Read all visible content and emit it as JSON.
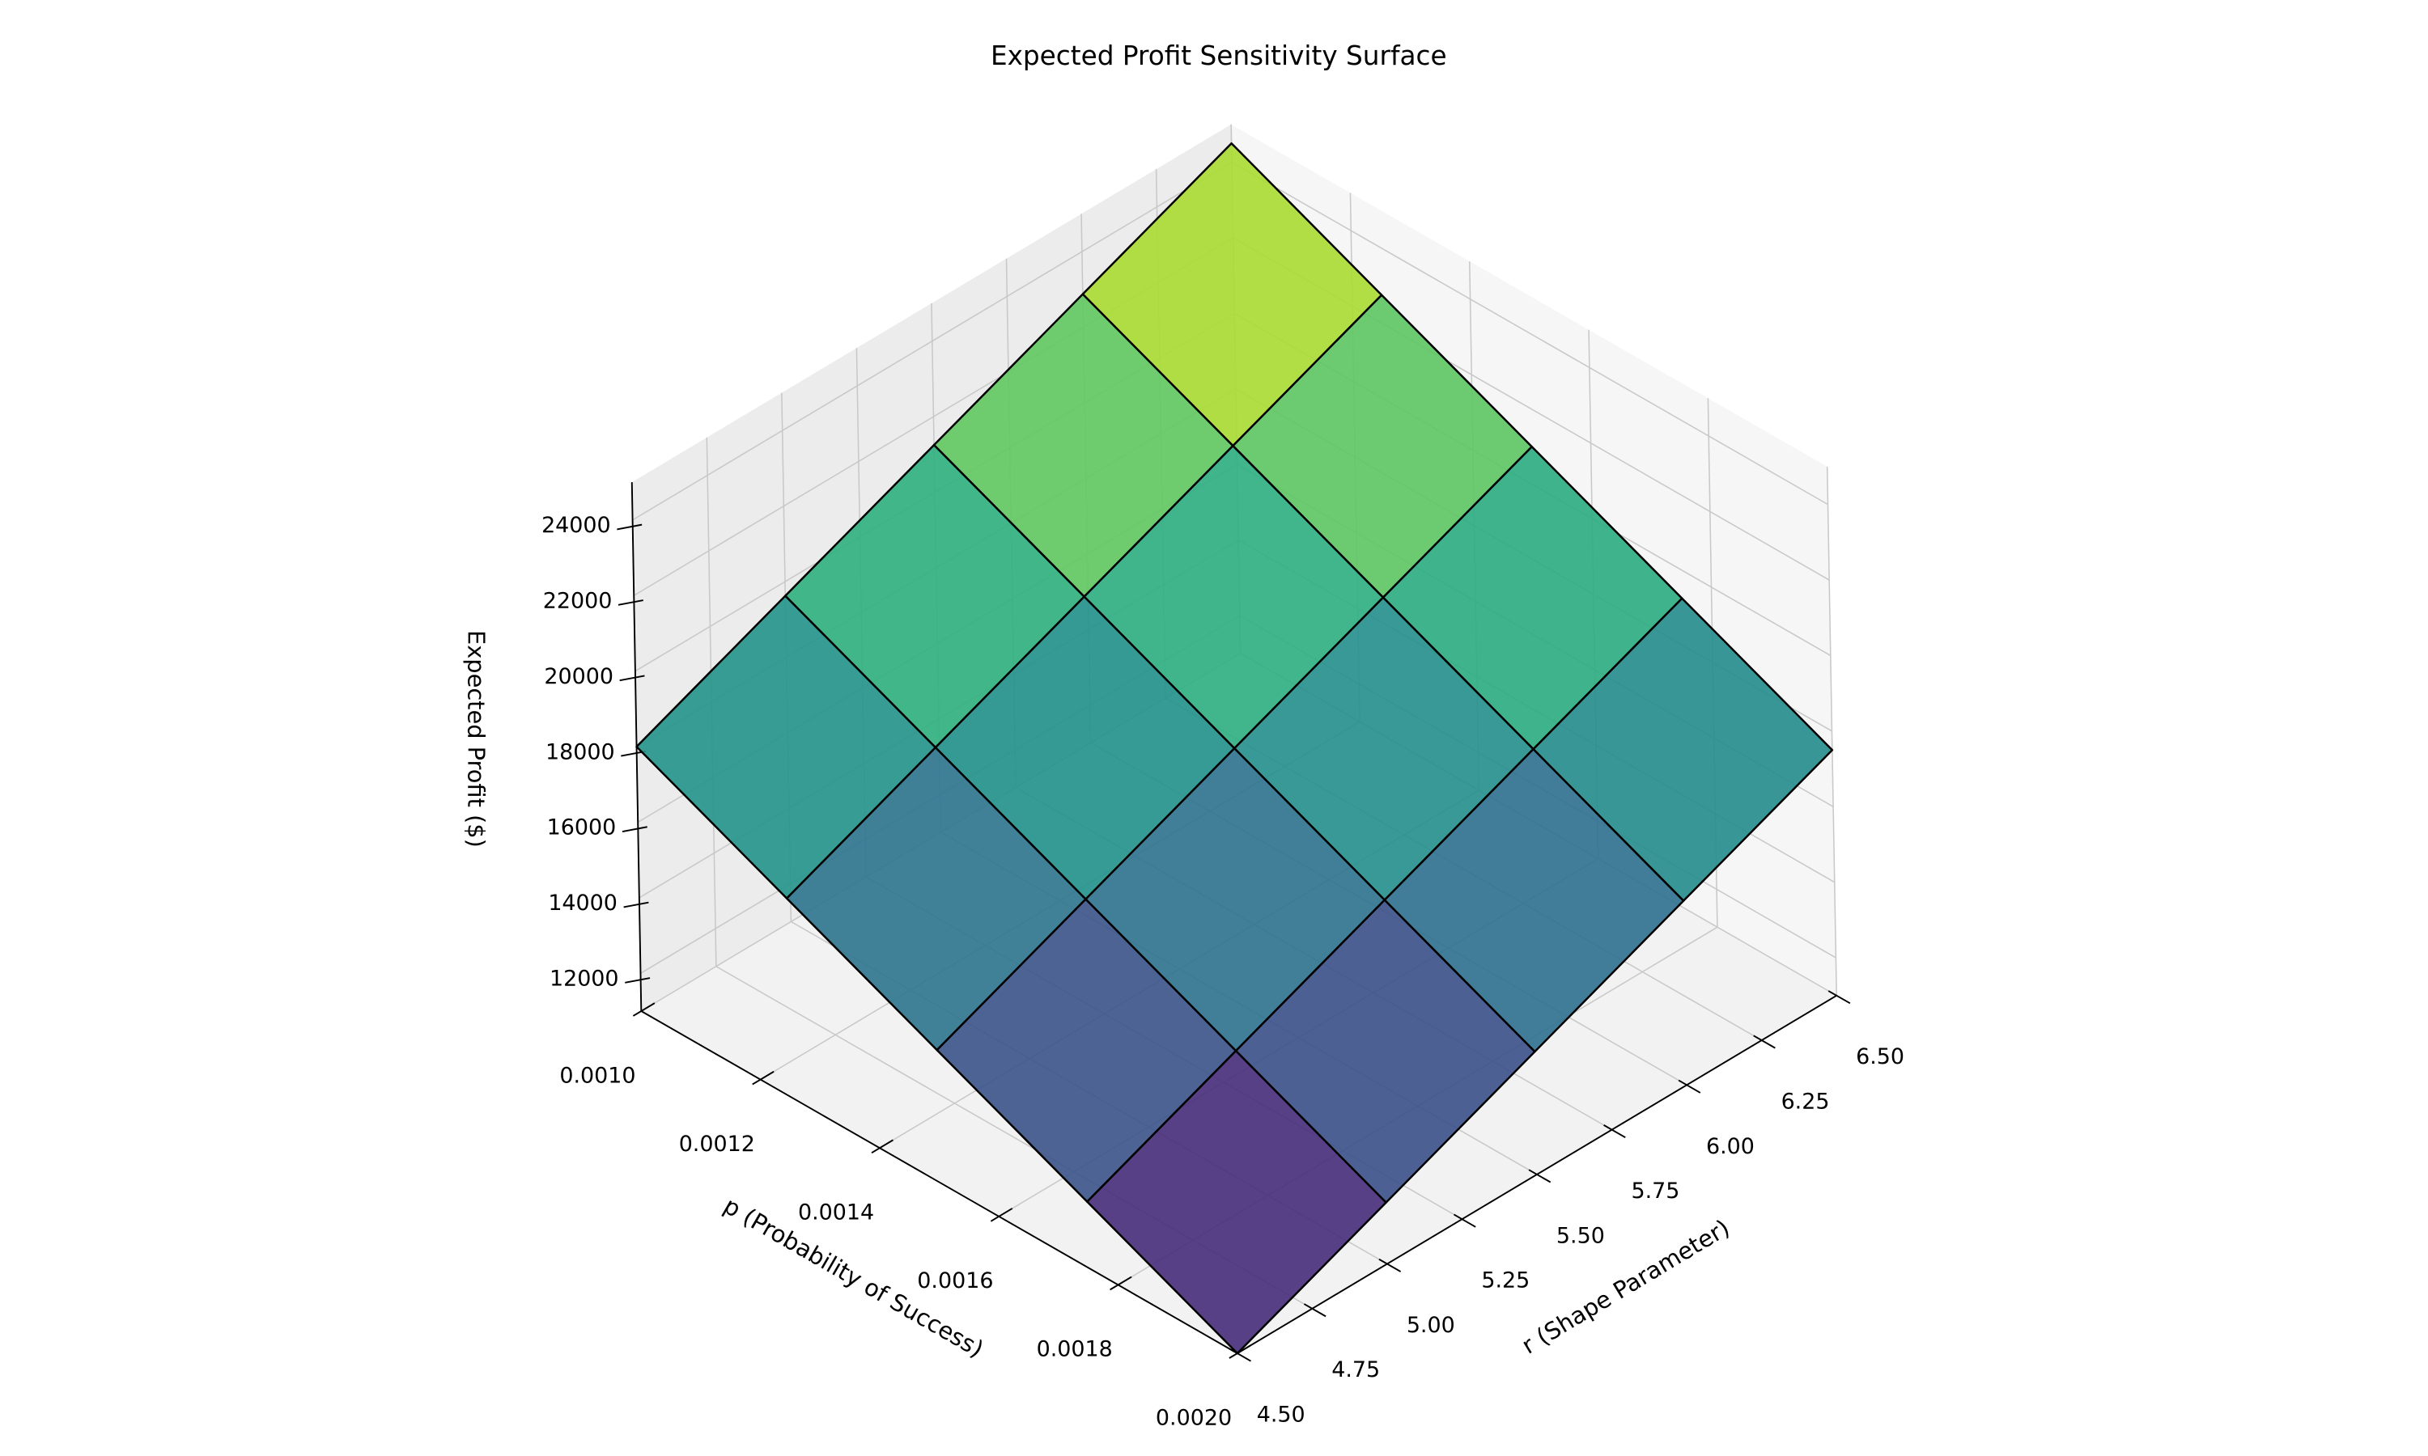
{
  "chart_data": {
    "type": "surface",
    "title": "Expected Profit Sensitivity Surface",
    "xlabel": "p (Probability of Success)",
    "ylabel": "r (Shape Parameter)",
    "zlabel": "Expected Profit ($)",
    "x": [
      0.001,
      0.00125,
      0.0015,
      0.00175,
      0.002
    ],
    "y": [
      4.5,
      5.0,
      5.5,
      6.0,
      6.5
    ],
    "z": [
      [
        18000,
        19625,
        21250,
        22875,
        24500
      ],
      [
        16250,
        17875,
        19500,
        21125,
        22750
      ],
      [
        14500,
        16125,
        17750,
        19375,
        21000
      ],
      [
        12750,
        14375,
        16000,
        17625,
        19250
      ],
      [
        11000,
        12625,
        14250,
        15875,
        17500
      ]
    ],
    "xlim": [
      0.001,
      0.002
    ],
    "ylim": [
      4.5,
      6.5
    ],
    "zlim": [
      11000,
      25000
    ],
    "xticks": [
      {
        "value": 0.001,
        "label": "0.0010"
      },
      {
        "value": 0.0012,
        "label": "0.0012"
      },
      {
        "value": 0.0014,
        "label": "0.0014"
      },
      {
        "value": 0.0016,
        "label": "0.0016"
      },
      {
        "value": 0.0018,
        "label": "0.0018"
      },
      {
        "value": 0.002,
        "label": "0.0020"
      }
    ],
    "yticks": [
      {
        "value": 4.5,
        "label": "4.50"
      },
      {
        "value": 4.75,
        "label": "4.75"
      },
      {
        "value": 5.0,
        "label": "5.00"
      },
      {
        "value": 5.25,
        "label": "5.25"
      },
      {
        "value": 5.5,
        "label": "5.50"
      },
      {
        "value": 5.75,
        "label": "5.75"
      },
      {
        "value": 6.0,
        "label": "6.00"
      },
      {
        "value": 6.25,
        "label": "6.25"
      },
      {
        "value": 6.5,
        "label": "6.50"
      }
    ],
    "zticks": [
      12000,
      14000,
      16000,
      18000,
      20000,
      22000,
      24000
    ],
    "colormap": "viridis",
    "grid": true
  }
}
